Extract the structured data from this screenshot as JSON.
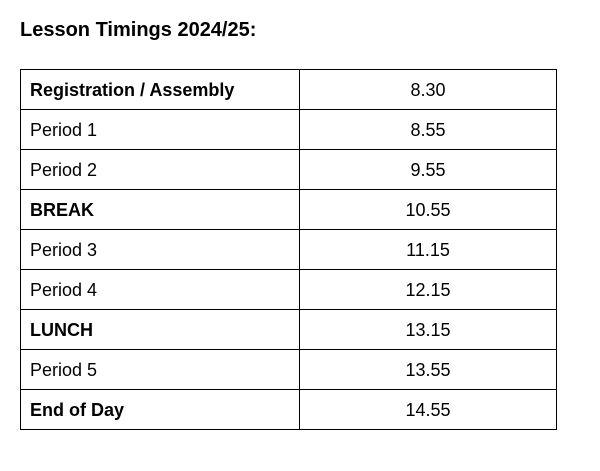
{
  "title": "Lesson Timings 2024/25:",
  "rows": [
    {
      "label": "Registration / Assembly",
      "time": "8.30",
      "bold": true
    },
    {
      "label": "Period 1",
      "time": "8.55",
      "bold": false
    },
    {
      "label": "Period 2",
      "time": "9.55",
      "bold": false
    },
    {
      "label": "BREAK",
      "time": "10.55",
      "bold": true
    },
    {
      "label": "Period 3",
      "time": "11.15",
      "bold": false
    },
    {
      "label": "Period 4",
      "time": "12.15",
      "bold": false
    },
    {
      "label": "LUNCH",
      "time": "13.15",
      "bold": true
    },
    {
      "label": "Period 5",
      "time": "13.55",
      "bold": false
    },
    {
      "label": "End of Day",
      "time": "14.55",
      "bold": true
    }
  ]
}
